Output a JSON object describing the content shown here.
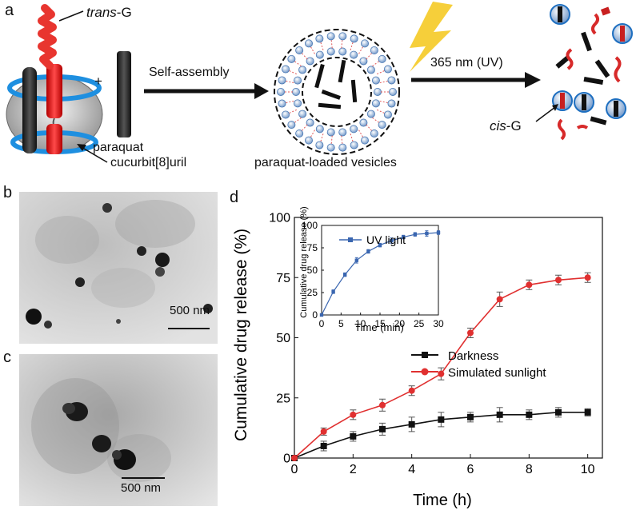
{
  "panels": {
    "a": "a",
    "b": "b",
    "c": "c",
    "d": "d"
  },
  "scheme": {
    "trans_g_prefix": "trans",
    "trans_g_suffix": "-G",
    "cis_g_prefix": "cis",
    "cis_g_suffix": "-G",
    "plus": "+",
    "paraquat": "paraquat",
    "cucurbituril": "cucurbit[8]uril",
    "self_assembly": "Self-assembly",
    "vesicles": "paraquat-loaded vesicles",
    "uv": "365 nm (UV)"
  },
  "tem": {
    "b_scale": "500 nm",
    "c_scale": "500 nm"
  },
  "colors": {
    "darkness": "#111111",
    "sunlight": "#e03030",
    "uv": "#3a66b0"
  },
  "chart_data": [
    {
      "type": "line",
      "title": "",
      "xlabel": "Time (h)",
      "ylabel": "Cumulative drug release (%)",
      "xlim": [
        0,
        10.5
      ],
      "ylim": [
        0,
        100
      ],
      "xticks": [
        "0",
        "2",
        "4",
        "6",
        "8",
        "10"
      ],
      "yticks": [
        "0",
        "25",
        "50",
        "75",
        "100"
      ],
      "legend_position": "bottom-right",
      "series": [
        {
          "name": "Darkness",
          "marker": "square",
          "x": [
            0,
            1,
            2,
            3,
            4,
            5,
            6,
            7,
            8,
            9,
            10
          ],
          "y": [
            0,
            5,
            9,
            12,
            14,
            16,
            17,
            18,
            18,
            19,
            19
          ],
          "err": [
            0,
            2,
            2,
            2.5,
            3,
            3,
            2,
            3,
            2,
            2,
            1.5
          ]
        },
        {
          "name": "Simulated sunlight",
          "marker": "circle",
          "x": [
            0,
            1,
            2,
            3,
            4,
            5,
            6,
            7,
            8,
            9,
            10
          ],
          "y": [
            0,
            11,
            18,
            22,
            28,
            35,
            52,
            66,
            72,
            74,
            75
          ],
          "err": [
            0,
            1.5,
            2,
            2.5,
            2,
            2.5,
            2,
            3,
            2,
            2,
            2
          ]
        }
      ]
    },
    {
      "type": "line",
      "title": "",
      "xlabel": "Time (min)",
      "ylabel": "Cumulative drug release (%)",
      "xlim": [
        0,
        30
      ],
      "ylim": [
        0,
        100
      ],
      "xticks": [
        "0",
        "5",
        "10",
        "15",
        "20",
        "25",
        "30"
      ],
      "yticks": [
        "0",
        "25",
        "50",
        "75",
        "100"
      ],
      "legend_position": "top-left",
      "series": [
        {
          "name": "UV light",
          "marker": "square",
          "x": [
            0,
            3,
            6,
            9,
            12,
            15,
            18,
            21,
            24,
            27,
            30
          ],
          "y": [
            0,
            26,
            45,
            61,
            71,
            78,
            83,
            87,
            90,
            91,
            92
          ],
          "err": [
            0,
            2,
            2,
            3,
            2,
            2,
            3,
            2,
            2,
            3,
            2
          ]
        }
      ]
    }
  ]
}
